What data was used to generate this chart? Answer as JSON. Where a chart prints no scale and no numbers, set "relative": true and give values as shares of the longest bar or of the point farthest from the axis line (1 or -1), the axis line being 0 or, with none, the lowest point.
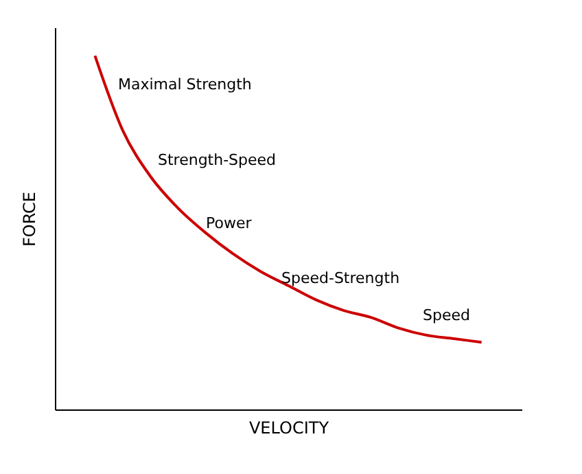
{
  "chart_data": {
    "type": "line",
    "relative": true,
    "xlabel": "VELOCITY",
    "ylabel": "FORCE",
    "categories": [
      null,
      null,
      null,
      null,
      null,
      null,
      null,
      null,
      null,
      null,
      null,
      null,
      null,
      null,
      null
    ],
    "series": [
      {
        "color": "#cc0000",
        "values": [
          1,
          0.79,
          0.66,
          0.57,
          0.5,
          0.44,
          0.39,
          0.35,
          0.31,
          0.28,
          0.26,
          0.23,
          0.21,
          0.2,
          0.19
        ]
      }
    ],
    "annotations": [
      "Maximal Strength",
      "Strength-Speed",
      "Power",
      "Speed-Strength",
      "Speed"
    ],
    "grid": false,
    "marker": "none",
    "line_style": "solid"
  }
}
